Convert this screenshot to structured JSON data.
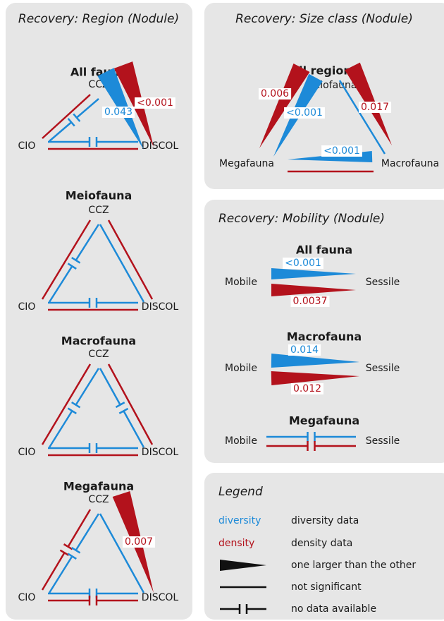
{
  "region": {
    "title": "Recovery: Region (Nodule)",
    "groups": [
      {
        "title": "All fauna",
        "top": "CCZ",
        "left": "CIO",
        "right": "DISCOL",
        "labels": [
          "0.043",
          "<0.001"
        ]
      },
      {
        "title": "Meiofauna",
        "top": "CCZ",
        "left": "CIO",
        "right": "DISCOL",
        "labels": []
      },
      {
        "title": "Macrofauna",
        "top": "CCZ",
        "left": "CIO",
        "right": "DISCOL",
        "labels": []
      },
      {
        "title": "Megafauna",
        "top": "CCZ",
        "left": "CIO",
        "right": "DISCOL",
        "labels": [
          "0.007"
        ]
      }
    ]
  },
  "size": {
    "title": "Recovery: Size class (Nodule)",
    "group_title": "All regions",
    "top": "Meiofauna",
    "left": "Megafauna",
    "right": "Macrofauna",
    "labels": [
      "0.006",
      "<0.001",
      "0.017",
      "<0.001"
    ]
  },
  "mobility": {
    "title": "Recovery: Mobility (Nodule)",
    "groups": [
      {
        "title": "All fauna",
        "left": "Mobile",
        "right": "Sessile",
        "labels": [
          "<0.001",
          "0.0037"
        ]
      },
      {
        "title": "Macrofauna",
        "left": "Mobile",
        "right": "Sessile",
        "labels": [
          "0.014",
          "0.012"
        ]
      },
      {
        "title": "Megafauna",
        "left": "Mobile",
        "right": "Sessile",
        "labels": []
      }
    ]
  },
  "legend": {
    "title": "Legend",
    "items": [
      {
        "key": "diversity",
        "text": "diversity data"
      },
      {
        "key": "density",
        "text": "density data"
      },
      {
        "text": "one larger than the other"
      },
      {
        "text": "not significant"
      },
      {
        "text": "no data available"
      }
    ]
  }
}
